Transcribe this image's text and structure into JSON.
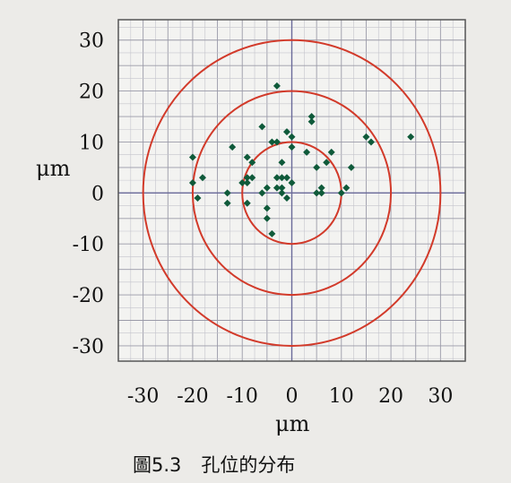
{
  "chart_data": {
    "type": "scatter",
    "xlabel": "μm",
    "ylabel": "μm",
    "xlim": [
      -35,
      35
    ],
    "ylim": [
      -33,
      34
    ],
    "xticks": [
      -30,
      -20,
      -10,
      0,
      10,
      20,
      30
    ],
    "yticks": [
      30,
      20,
      10,
      0,
      -10,
      -20,
      -30
    ],
    "ytick_labels": [
      "30",
      "20",
      "10",
      "0",
      "-10",
      "-20",
      "-30"
    ],
    "grid": true,
    "circles_radius": [
      10,
      20,
      30
    ],
    "circle_color": "#d23a2a",
    "point_color": "#0f5a3a",
    "points": [
      {
        "x": -3,
        "y": 21
      },
      {
        "x": 4,
        "y": 15
      },
      {
        "x": 4,
        "y": 14
      },
      {
        "x": -6,
        "y": 13
      },
      {
        "x": -1,
        "y": 12
      },
      {
        "x": 0,
        "y": 11
      },
      {
        "x": 15,
        "y": 11
      },
      {
        "x": 16,
        "y": 10
      },
      {
        "x": 24,
        "y": 11
      },
      {
        "x": -4,
        "y": 10
      },
      {
        "x": -3,
        "y": 10
      },
      {
        "x": -12,
        "y": 9
      },
      {
        "x": 0,
        "y": 9
      },
      {
        "x": 3,
        "y": 8
      },
      {
        "x": 8,
        "y": 8
      },
      {
        "x": -20,
        "y": 7
      },
      {
        "x": -9,
        "y": 7
      },
      {
        "x": -8,
        "y": 6
      },
      {
        "x": -2,
        "y": 6
      },
      {
        "x": 7,
        "y": 6
      },
      {
        "x": 5,
        "y": 5
      },
      {
        "x": 12,
        "y": 5
      },
      {
        "x": -18,
        "y": 3
      },
      {
        "x": -9,
        "y": 3
      },
      {
        "x": -8,
        "y": 3
      },
      {
        "x": -3,
        "y": 3
      },
      {
        "x": -2,
        "y": 3
      },
      {
        "x": -1,
        "y": 3
      },
      {
        "x": -20,
        "y": 2
      },
      {
        "x": -10,
        "y": 2
      },
      {
        "x": -9,
        "y": 2
      },
      {
        "x": 0,
        "y": 2
      },
      {
        "x": -5,
        "y": 1
      },
      {
        "x": -3,
        "y": 1
      },
      {
        "x": -2,
        "y": 1
      },
      {
        "x": 6,
        "y": 1
      },
      {
        "x": 11,
        "y": 1
      },
      {
        "x": -13,
        "y": 0
      },
      {
        "x": -6,
        "y": 0
      },
      {
        "x": -2,
        "y": 0
      },
      {
        "x": 5,
        "y": 0
      },
      {
        "x": 6,
        "y": 0
      },
      {
        "x": 10,
        "y": 0
      },
      {
        "x": -19,
        "y": -1
      },
      {
        "x": -1,
        "y": -1
      },
      {
        "x": -13,
        "y": -2
      },
      {
        "x": -9,
        "y": -2
      },
      {
        "x": -5,
        "y": -3
      },
      {
        "x": -5,
        "y": -5
      },
      {
        "x": -4,
        "y": -8
      }
    ]
  },
  "caption": {
    "figure_number": "圖5.3",
    "title": "孔位的分布"
  }
}
